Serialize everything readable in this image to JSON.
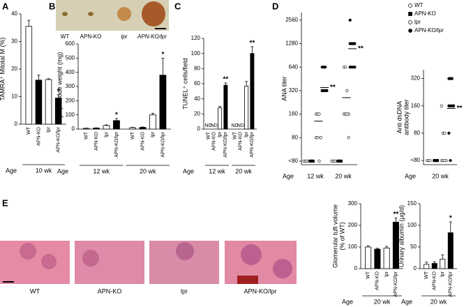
{
  "figure": {
    "panels": [
      "A",
      "B",
      "C",
      "D",
      "E"
    ],
    "photo_labels": [
      "WT",
      "APN-KO",
      "lpr",
      "APN-KO/lpr"
    ],
    "histology_labels": [
      "WT",
      "APN-KO",
      "lpr",
      "APN-KO/lpr"
    ]
  },
  "chart_data": [
    {
      "type": "bar",
      "ylabel": "TAMRA⁺ Mitotal M (%)",
      "ylim": [
        0,
        40
      ],
      "yticks": [
        0,
        10,
        20,
        30,
        40
      ],
      "xlabel": "Age",
      "categories": [
        "10 wk"
      ],
      "series": [
        {
          "name": "WT",
          "color": "#ffffff",
          "values": [
            35.5
          ],
          "errors": [
            2.2
          ]
        },
        {
          "name": "APN-KO",
          "color": "#000000",
          "values": [
            16
          ],
          "errors": [
            1.8
          ]
        },
        {
          "name": "lpr",
          "color": "#ffffff",
          "values": [
            16.2
          ],
          "errors": [
            0.3
          ]
        },
        {
          "name": "APN-KO/lpr",
          "color": "#000000",
          "values": [
            9.5
          ],
          "errors": [
            1.2
          ],
          "significance": [
            "*"
          ]
        }
      ]
    },
    {
      "type": "bar",
      "ylabel": "Lymph node weight (mg)",
      "ylim": [
        0,
        600
      ],
      "yticks": [
        0,
        100,
        200,
        300,
        400,
        500,
        600
      ],
      "xlabel": "Age",
      "categories": [
        "12 wk",
        "20 wk"
      ],
      "series": [
        {
          "name": "WT",
          "color": "#ffffff",
          "values": [
            5,
            10
          ],
          "errors": [
            2,
            3
          ]
        },
        {
          "name": "APN-KO",
          "color": "#000000",
          "values": [
            7,
            12
          ],
          "errors": [
            2,
            3
          ]
        },
        {
          "name": "lpr",
          "color": "#ffffff",
          "values": [
            25,
            100
          ],
          "errors": [
            5,
            12
          ]
        },
        {
          "name": "APN-KO/lpr",
          "color": "#000000",
          "values": [
            60,
            380
          ],
          "errors": [
            15,
            120
          ],
          "significance": [
            "*",
            "*"
          ]
        }
      ]
    },
    {
      "type": "bar",
      "ylabel": "TUNEL⁺ cells/field",
      "ylim": [
        0,
        120
      ],
      "yticks": [
        0,
        20,
        40,
        60,
        80,
        100,
        120
      ],
      "xlabel": "Age",
      "categories": [
        "12 wk",
        "20 wk"
      ],
      "series": [
        {
          "name": "WT",
          "color": "#ffffff",
          "values": [
            null,
            null
          ],
          "value_labels": [
            "ND",
            "ND"
          ]
        },
        {
          "name": "APN-KO",
          "color": "#000000",
          "values": [
            null,
            null
          ],
          "value_labels": [
            "ND",
            "ND"
          ]
        },
        {
          "name": "lpr",
          "color": "#ffffff",
          "values": [
            28,
            57
          ],
          "errors": [
            2,
            6
          ]
        },
        {
          "name": "APN-KO/lpr",
          "color": "#000000",
          "values": [
            58,
            100
          ],
          "errors": [
            3,
            9
          ],
          "significance": [
            "**",
            "**"
          ]
        }
      ]
    },
    {
      "type": "dot",
      "log": true,
      "legend": true,
      "ylabel": "ANA titer",
      "ylim": [
        36,
        3200
      ],
      "yticks": [
        {
          "value": 40,
          "label": "<80"
        },
        80,
        160,
        320,
        640,
        1280,
        2560
      ],
      "xlabel": "Age",
      "categories": [
        "12 wk",
        "20 wk"
      ],
      "series": [
        {
          "name": "WT",
          "color": "#ffffff",
          "marker": "circle",
          "values": [
            [
              40,
              40,
              40
            ],
            [
              40,
              40,
              40
            ]
          ],
          "means": [
            null,
            null
          ]
        },
        {
          "name": "APN-KO",
          "color": "#000000",
          "marker": "square",
          "values": [
            [
              40,
              40,
              40
            ],
            [
              40,
              40,
              40
            ]
          ],
          "means": [
            null,
            null
          ]
        },
        {
          "name": "lpr",
          "color": "#ffffff",
          "marker": "circle",
          "values": [
            [
              160,
              160,
              160,
              80,
              80,
              80,
              40
            ],
            [
              640,
              640,
              320,
              160,
              160,
              160,
              160,
              80
            ]
          ],
          "means": [
            130,
            260
          ]
        },
        {
          "name": "APN-KO/lpr",
          "color": "#000000",
          "marker": "circle",
          "values": [
            [
              640,
              640,
              640,
              320,
              320,
              320,
              320,
              320,
              320
            ],
            [
              2560,
              1280,
              1280,
              1280,
              1280,
              1280,
              640,
              640,
              640,
              640
            ]
          ],
          "means": [
            350,
            1100
          ],
          "significance": [
            "**",
            "**"
          ]
        }
      ]
    },
    {
      "type": "dot",
      "log": true,
      "ylabel": [
        "Anti dsDNA",
        "antibody titer"
      ],
      "ylim": [
        36,
        400
      ],
      "yticks": [
        {
          "value": 40,
          "label": "<80"
        },
        80,
        160,
        320
      ],
      "xlabel": "Age",
      "categories": [
        "20 wk"
      ],
      "series": [
        {
          "color": "#ffffff",
          "marker": "circle",
          "values": [
            [
              40,
              40,
              40
            ]
          ],
          "means": [
            null
          ]
        },
        {
          "color": "#000000",
          "marker": "square",
          "values": [
            [
              40,
              40,
              40
            ]
          ],
          "means": [
            null
          ]
        },
        {
          "color": "#ffffff",
          "marker": "circle",
          "values": [
            [
              160,
              80,
              80,
              40,
              40,
              40,
              40
            ]
          ],
          "means": [
            null
          ]
        },
        {
          "color": "#000000",
          "marker": "circle",
          "values": [
            [
              320,
              320,
              320,
              160,
              160,
              160,
              160,
              160,
              80,
              40
            ]
          ],
          "means": [
            150
          ],
          "significance": [
            "**"
          ]
        }
      ]
    },
    {
      "type": "bar",
      "ylabel": [
        "Glomerular tuft volume",
        "(% of WT)"
      ],
      "ylim": [
        0,
        300
      ],
      "yticks": [
        0,
        100,
        200,
        300
      ],
      "xlabel": "Age",
      "categories": [
        "20 wk"
      ],
      "series": [
        {
          "name": "WT",
          "color": "#ffffff",
          "values": [
            100
          ],
          "errors": [
            6
          ]
        },
        {
          "name": "APN-KO",
          "color": "#000000",
          "values": [
            90
          ],
          "errors": [
            4
          ]
        },
        {
          "name": "lpr",
          "color": "#ffffff",
          "values": [
            95
          ],
          "errors": [
            8
          ]
        },
        {
          "name": "APN-KO/lpr",
          "color": "#000000",
          "values": [
            215
          ],
          "errors": [
            20
          ],
          "significance": [
            "**"
          ]
        }
      ]
    },
    {
      "type": "bar",
      "ylabel": "Urinary albumin (μg/d)",
      "ylim": [
        0,
        150
      ],
      "yticks": [
        0,
        50,
        100,
        150
      ],
      "xlabel": "Age",
      "categories": [
        "20 wk"
      ],
      "series": [
        {
          "name": "WT",
          "color": "#ffffff",
          "values": [
            10
          ],
          "errors": [
            5
          ]
        },
        {
          "name": "APN-KO",
          "color": "#000000",
          "values": [
            12
          ],
          "errors": [
            4
          ]
        },
        {
          "name": "lpr",
          "color": "#ffffff",
          "values": [
            22
          ],
          "errors": [
            10
          ]
        },
        {
          "name": "APN-KO/lpr",
          "color": "#000000",
          "values": [
            83
          ],
          "errors": [
            25
          ],
          "significance": [
            "*"
          ]
        }
      ]
    }
  ]
}
